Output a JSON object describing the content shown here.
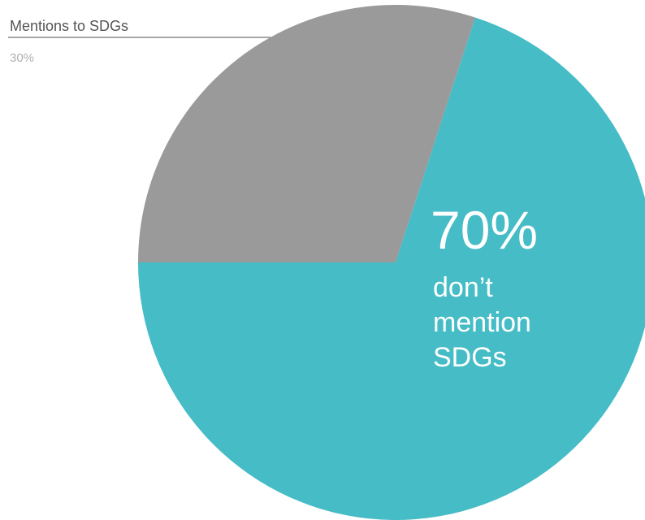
{
  "chart_data": {
    "type": "pie",
    "title": "",
    "slices": [
      {
        "label": "Mentions to SDGs",
        "value": 30,
        "value_label": "30%",
        "color": "#9a9a9a"
      },
      {
        "label": "don’t mention SDGs",
        "value": 70,
        "value_label": "70%",
        "color": "#45bcc6"
      }
    ],
    "inside_label": {
      "value_label": "70%",
      "lines": [
        "don’t",
        "mention",
        "SDGs"
      ]
    }
  }
}
